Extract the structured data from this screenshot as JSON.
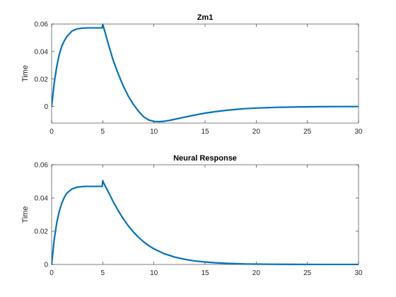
{
  "figure": {
    "background": "#ffffff"
  },
  "chart_data": [
    {
      "type": "line",
      "title": "Zm1",
      "xlabel": "",
      "ylabel": "Time",
      "xlim": [
        0,
        30
      ],
      "ylim": [
        -0.012,
        0.06
      ],
      "xticks": [
        0,
        5,
        10,
        15,
        20,
        25,
        30
      ],
      "yticks": [
        0,
        0.02,
        0.04,
        0.06
      ],
      "xtick_labels": [
        "0",
        "5",
        "10",
        "15",
        "20",
        "25",
        "30"
      ],
      "ytick_labels": [
        "0",
        "0.02",
        "0.04",
        "0.06"
      ],
      "grid": false,
      "color": "#0072BD",
      "series": [
        {
          "x": [
            0,
            0.25,
            0.5,
            0.75,
            1,
            1.25,
            1.5,
            2,
            2.5,
            3,
            3.5,
            4,
            4.5,
            4.95,
            5.0,
            5.05,
            5.3,
            5.6,
            6,
            6.5,
            7,
            7.5,
            8,
            8.5,
            9,
            9.5,
            10,
            10.5,
            11,
            11.5,
            12,
            13,
            14,
            15,
            16,
            17,
            18,
            19,
            20,
            22,
            24,
            26,
            28,
            30
          ],
          "y": [
            0,
            0.017,
            0.029,
            0.038,
            0.044,
            0.048,
            0.051,
            0.055,
            0.0565,
            0.057,
            0.0572,
            0.0572,
            0.0572,
            0.0572,
            0.0598,
            0.0585,
            0.052,
            0.044,
            0.034,
            0.024,
            0.015,
            0.0075,
            0.0015,
            -0.0035,
            -0.0075,
            -0.0098,
            -0.0108,
            -0.011,
            -0.0107,
            -0.0101,
            -0.0093,
            -0.0077,
            -0.0062,
            -0.0048,
            -0.0037,
            -0.0028,
            -0.0021,
            -0.0015,
            -0.0011,
            -0.0006,
            -0.0003,
            -0.0001,
            0,
            0
          ]
        }
      ]
    },
    {
      "type": "line",
      "title": "Neural Response",
      "xlabel": "",
      "ylabel": "Time",
      "xlim": [
        0,
        30
      ],
      "ylim": [
        0,
        0.06
      ],
      "xticks": [
        0,
        5,
        10,
        15,
        20,
        25,
        30
      ],
      "yticks": [
        0,
        0.02,
        0.04,
        0.06
      ],
      "xtick_labels": [
        "0",
        "5",
        "10",
        "15",
        "20",
        "25",
        "30"
      ],
      "ytick_labels": [
        "0",
        "0.02",
        "0.04",
        "0.06"
      ],
      "grid": false,
      "color": "#0072BD",
      "series": [
        {
          "x": [
            0,
            0.25,
            0.5,
            0.75,
            1,
            1.25,
            1.5,
            2,
            2.5,
            3,
            3.5,
            4,
            4.5,
            4.95,
            5.0,
            5.05,
            5.3,
            5.6,
            6,
            6.5,
            7,
            7.5,
            8,
            8.5,
            9,
            9.5,
            10,
            11,
            12,
            13,
            14,
            15,
            16,
            17,
            18,
            19,
            20,
            22,
            24,
            26,
            28,
            30
          ],
          "y": [
            0,
            0.015,
            0.025,
            0.032,
            0.037,
            0.0405,
            0.043,
            0.0455,
            0.0465,
            0.0469,
            0.047,
            0.047,
            0.047,
            0.047,
            0.0505,
            0.0495,
            0.0465,
            0.043,
            0.038,
            0.0325,
            0.0275,
            0.0232,
            0.0195,
            0.0163,
            0.0136,
            0.0113,
            0.0094,
            0.0065,
            0.0045,
            0.0031,
            0.0021,
            0.0015,
            0.001,
            0.0007,
            0.0005,
            0.0003,
            0.0002,
            0.0001,
            5e-05,
            0,
            0,
            0
          ]
        }
      ]
    }
  ]
}
